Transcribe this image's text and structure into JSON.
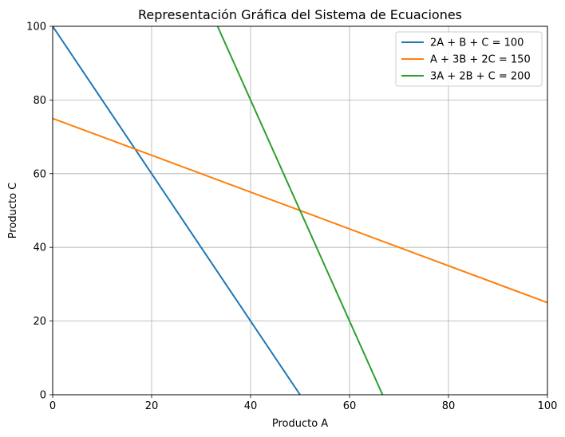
{
  "chart_data": {
    "type": "line",
    "title": "Representación Gráfica del Sistema de Ecuaciones",
    "xlabel": "Producto A",
    "ylabel": "Producto C",
    "xlim": [
      0,
      100
    ],
    "ylim": [
      0,
      100
    ],
    "xticks": [
      0,
      20,
      40,
      60,
      80,
      100
    ],
    "yticks": [
      0,
      20,
      40,
      60,
      80,
      100
    ],
    "grid": true,
    "legend_position": "top-right",
    "series": [
      {
        "name": "2A + B + C = 100",
        "color": "#1f77b4",
        "x": [
          0,
          50
        ],
        "y": [
          100,
          0
        ]
      },
      {
        "name": "A + 3B + 2C = 150",
        "color": "#ff7f0e",
        "x": [
          0,
          100
        ],
        "y": [
          75,
          25
        ]
      },
      {
        "name": "3A + 2B + C = 200",
        "color": "#2ca02c",
        "x": [
          33.33,
          66.67
        ],
        "y": [
          100,
          0
        ]
      }
    ]
  }
}
